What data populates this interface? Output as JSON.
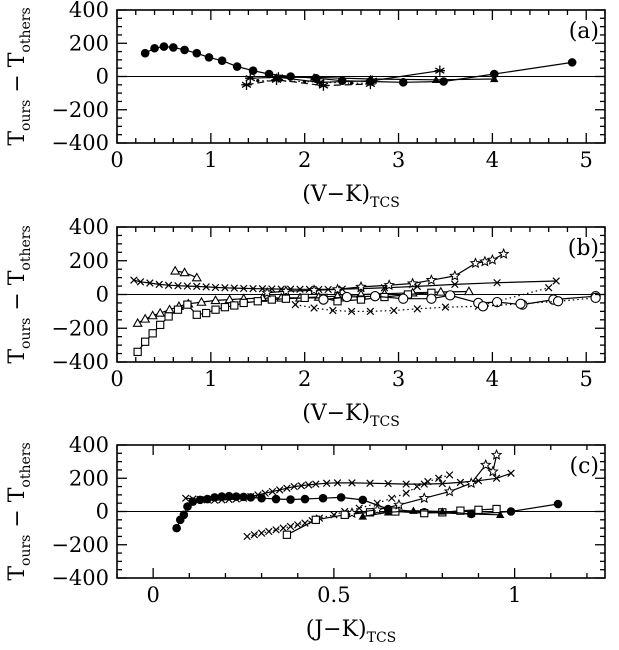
{
  "panels": [
    {
      "id": "a",
      "panel_label": "(a)",
      "ylabel_main": "T",
      "ylabel_sub1": "ours",
      "ylabel_mid": " − T",
      "ylabel_sub2": "others",
      "xlabel_main": "(V−K)",
      "xlabel_sub": "TCS",
      "xlim": [
        0,
        5.2
      ],
      "ylim": [
        -400,
        400
      ],
      "xticks": [
        {
          "v": 0,
          "t": "0"
        },
        {
          "v": 1,
          "t": "1"
        },
        {
          "v": 2,
          "t": "2"
        },
        {
          "v": 3,
          "t": "3"
        },
        {
          "v": 4,
          "t": "4"
        },
        {
          "v": 5,
          "t": "5"
        }
      ],
      "yticks": [
        {
          "v": -400,
          "t": "−400"
        },
        {
          "v": -200,
          "t": "−200"
        },
        {
          "v": 0,
          "t": "0"
        },
        {
          "v": 200,
          "t": "200"
        },
        {
          "v": 400,
          "t": "400"
        }
      ],
      "series": [
        {
          "marker": "circle",
          "line": "solid",
          "x": [
            0.3,
            0.4,
            0.5,
            0.6,
            0.72,
            0.85,
            0.98,
            1.12,
            1.28,
            1.45,
            1.62,
            1.85,
            2.12,
            2.4,
            2.7,
            3.05,
            3.48,
            4.02,
            4.85
          ],
          "y": [
            140,
            170,
            180,
            175,
            160,
            140,
            115,
            95,
            60,
            35,
            15,
            0,
            -10,
            -25,
            -30,
            -35,
            -30,
            15,
            85
          ]
        },
        {
          "marker": "asterisk",
          "line": "solid",
          "x": [
            1.42,
            1.72,
            2.16,
            2.72,
            3.44
          ],
          "y": [
            -10,
            -5,
            -35,
            -25,
            35
          ]
        },
        {
          "marker": "asterisk",
          "line": "dashed",
          "x": [
            1.38,
            1.7,
            2.2,
            2.7
          ],
          "y": [
            -50,
            -20,
            -55,
            -45
          ]
        },
        {
          "marker": "triangle",
          "line": "solid",
          "x": [
            1.7,
            2.1,
            2.7,
            3.4,
            4.02
          ],
          "y": [
            -5,
            -5,
            -15,
            -20,
            -15
          ]
        },
        {
          "marker": "dot",
          "line": "dotted",
          "x": [
            1.5,
            2.0,
            2.5,
            2.7
          ],
          "y": [
            -25,
            -30,
            -40,
            -40
          ]
        }
      ]
    },
    {
      "id": "b",
      "panel_label": "(b)",
      "ylabel_main": "T",
      "ylabel_sub1": "ours",
      "ylabel_mid": " − T",
      "ylabel_sub2": "others",
      "xlabel_main": "(V−K)",
      "xlabel_sub": "TCS",
      "xlim": [
        0,
        5.2
      ],
      "ylim": [
        -400,
        400
      ],
      "xticks": [
        {
          "v": 0,
          "t": "0"
        },
        {
          "v": 1,
          "t": "1"
        },
        {
          "v": 2,
          "t": "2"
        },
        {
          "v": 3,
          "t": "3"
        },
        {
          "v": 4,
          "t": "4"
        },
        {
          "v": 5,
          "t": "5"
        }
      ],
      "yticks": [
        {
          "v": -400,
          "t": "−400"
        },
        {
          "v": -200,
          "t": "−200"
        },
        {
          "v": 0,
          "t": "0"
        },
        {
          "v": 200,
          "t": "200"
        },
        {
          "v": 400,
          "t": "400"
        }
      ],
      "series": [
        {
          "marker": "triangle-open",
          "line": "solid",
          "x": [
            0.22,
            0.3,
            0.38,
            0.46,
            0.56,
            0.66,
            0.76,
            0.9,
            1.05,
            1.2,
            1.35,
            1.55,
            1.75,
            1.95,
            2.15,
            2.35,
            2.6,
            2.85,
            3.15,
            3.45,
            3.75
          ],
          "y": [
            -170,
            -145,
            -125,
            -110,
            -90,
            -70,
            -55,
            -45,
            -35,
            -30,
            -25,
            -22,
            -20,
            -20,
            -15,
            -10,
            0,
            5,
            10,
            15,
            18
          ]
        },
        {
          "marker": "triangle-open",
          "line": "solid",
          "x": [
            0.62,
            0.72,
            0.85
          ],
          "y": [
            140,
            130,
            100
          ]
        },
        {
          "marker": "square-open",
          "line": "solid",
          "x": [
            0.22,
            0.3,
            0.38,
            0.46,
            0.55,
            0.65,
            0.75,
            0.85,
            0.95,
            1.05,
            1.15,
            1.25,
            1.35,
            1.5,
            1.65,
            1.8,
            2.0,
            2.2,
            2.35,
            2.6,
            2.85,
            3.1,
            3.35
          ],
          "y": [
            -340,
            -280,
            -230,
            -180,
            -130,
            -90,
            -60,
            -120,
            -110,
            -90,
            -75,
            -65,
            -50,
            -40,
            -30,
            -25,
            -20,
            -20,
            -40,
            -30,
            -15,
            0,
            10
          ]
        },
        {
          "marker": "x",
          "line": "solid",
          "x": [
            0.18,
            0.25,
            0.35,
            0.45,
            0.55,
            0.65,
            0.75,
            0.85,
            0.95,
            1.05,
            1.15,
            1.25,
            1.35,
            1.45,
            1.55,
            1.65,
            1.75,
            1.85,
            1.95,
            2.05,
            2.15,
            2.25,
            2.4,
            2.6,
            2.85,
            3.2,
            3.6,
            4.05,
            4.68
          ],
          "y": [
            85,
            75,
            68,
            60,
            55,
            52,
            50,
            48,
            45,
            42,
            40,
            38,
            36,
            35,
            34,
            33,
            32,
            32,
            31,
            31,
            30,
            30,
            32,
            35,
            40,
            48,
            60,
            70,
            80
          ]
        },
        {
          "marker": "x",
          "line": "dotted",
          "x": [
            1.9,
            2.1,
            2.3,
            2.5,
            2.7,
            2.95,
            3.2,
            3.5,
            3.85,
            4.6
          ],
          "y": [
            -60,
            -80,
            -95,
            -100,
            -100,
            -95,
            -85,
            -75,
            -70,
            40
          ]
        },
        {
          "marker": "circle-open",
          "line": "solid",
          "x": [
            2.2,
            2.45,
            2.75,
            3.05,
            3.35,
            3.55,
            3.85,
            4.05,
            4.32,
            4.65,
            5.1
          ],
          "y": [
            -30,
            -15,
            -10,
            -25,
            -25,
            -5,
            -50,
            -45,
            -60,
            -30,
            -10
          ]
        },
        {
          "marker": "circle-open",
          "line": "dotted",
          "x": [
            3.9,
            4.3,
            4.7,
            5.1
          ],
          "y": [
            -70,
            -55,
            -40,
            -20
          ]
        },
        {
          "marker": "star",
          "line": "solid",
          "x": [
            1.6,
            1.8,
            2.1,
            2.35,
            2.6,
            2.9,
            3.15,
            3.35,
            3.6,
            3.82,
            3.92,
            4.0,
            4.12
          ],
          "y": [
            10,
            20,
            25,
            30,
            45,
            55,
            65,
            85,
            110,
            185,
            195,
            205,
            240
          ]
        }
      ]
    },
    {
      "id": "c",
      "panel_label": "(c)",
      "ylabel_main": "T",
      "ylabel_sub1": "ours",
      "ylabel_mid": " − T",
      "ylabel_sub2": "others",
      "xlabel_main": "(J−K)",
      "xlabel_sub": "TCS",
      "xlim": [
        -0.1,
        1.25
      ],
      "ylim": [
        -400,
        400
      ],
      "xticks": [
        {
          "v": 0,
          "t": "0"
        },
        {
          "v": 0.5,
          "t": "0.5"
        },
        {
          "v": 1,
          "t": "1"
        }
      ],
      "yticks": [
        {
          "v": -400,
          "t": "−400"
        },
        {
          "v": -200,
          "t": "−200"
        },
        {
          "v": 0,
          "t": "0"
        },
        {
          "v": 200,
          "t": "200"
        },
        {
          "v": 400,
          "t": "400"
        }
      ],
      "series": [
        {
          "marker": "circle",
          "line": "solid",
          "x": [
            0.065,
            0.075,
            0.085,
            0.095,
            0.11,
            0.13,
            0.15,
            0.17,
            0.19,
            0.21,
            0.23,
            0.25,
            0.27,
            0.3,
            0.34,
            0.38,
            0.42,
            0.47,
            0.52,
            0.58,
            0.65,
            0.75,
            0.88,
            0.99,
            1.12
          ],
          "y": [
            -100,
            -50,
            -20,
            30,
            60,
            70,
            75,
            85,
            90,
            92,
            90,
            88,
            85,
            80,
            75,
            72,
            75,
            80,
            85,
            70,
            15,
            -5,
            -15,
            0,
            45
          ]
        },
        {
          "marker": "x",
          "line": "solid",
          "x": [
            0.09,
            0.11,
            0.13,
            0.15,
            0.17,
            0.19,
            0.21,
            0.23,
            0.25,
            0.27,
            0.29,
            0.31,
            0.33,
            0.35,
            0.37,
            0.39,
            0.41,
            0.43,
            0.45,
            0.48,
            0.51,
            0.55,
            0.6,
            0.65,
            0.7,
            0.75,
            0.8,
            0.85,
            0.9,
            0.95,
            0.99
          ],
          "y": [
            80,
            75,
            72,
            70,
            68,
            70,
            72,
            75,
            80,
            90,
            100,
            110,
            120,
            130,
            140,
            150,
            155,
            160,
            165,
            170,
            172,
            172,
            170,
            168,
            165,
            165,
            168,
            175,
            185,
            200,
            230
          ]
        },
        {
          "marker": "x",
          "line": "dotted",
          "x": [
            0.26,
            0.28,
            0.3,
            0.32,
            0.34,
            0.36,
            0.38,
            0.4,
            0.42,
            0.44,
            0.46,
            0.5,
            0.53,
            0.57,
            0.62,
            0.66,
            0.7,
            0.73,
            0.76,
            0.79,
            0.82
          ],
          "y": [
            -150,
            -140,
            -130,
            -120,
            -110,
            -100,
            -90,
            -80,
            -70,
            -55,
            -40,
            -20,
            0,
            20,
            50,
            80,
            110,
            150,
            180,
            200,
            220
          ]
        },
        {
          "marker": "square-open",
          "line": "solid",
          "x": [
            0.37,
            0.45,
            0.53,
            0.6,
            0.67,
            0.75,
            0.8,
            0.85,
            0.9,
            0.95
          ],
          "y": [
            -140,
            -50,
            -20,
            -5,
            0,
            -10,
            -5,
            5,
            10,
            15
          ]
        },
        {
          "marker": "triangle",
          "line": "solid",
          "x": [
            0.58,
            0.65,
            0.72,
            0.8,
            0.88,
            0.96
          ],
          "y": [
            -30,
            -5,
            5,
            0,
            -15,
            -20
          ]
        },
        {
          "marker": "star",
          "line": "solid",
          "x": [
            0.55,
            0.62,
            0.68,
            0.75,
            0.82,
            0.88,
            0.92,
            0.94,
            0.95
          ],
          "y": [
            -10,
            10,
            40,
            80,
            120,
            170,
            280,
            240,
            340
          ]
        }
      ]
    }
  ]
}
